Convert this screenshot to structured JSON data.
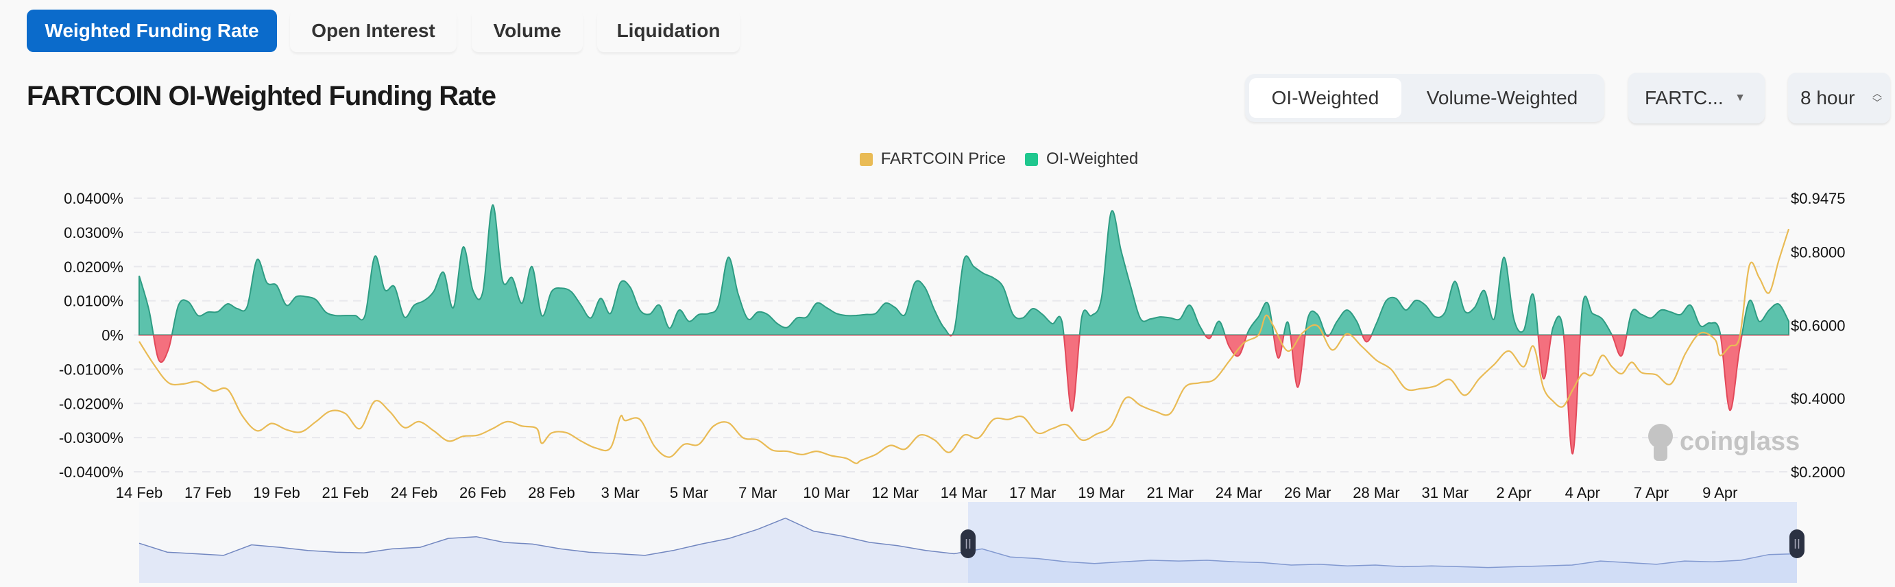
{
  "tabs": [
    {
      "label": "Weighted Funding Rate",
      "active": true
    },
    {
      "label": "Open Interest",
      "active": false
    },
    {
      "label": "Volume",
      "active": false
    },
    {
      "label": "Liquidation",
      "active": false
    }
  ],
  "title": "FARTCOIN OI-Weighted Funding Rate",
  "weighting_toggle": {
    "options": [
      "OI-Weighted",
      "Volume-Weighted"
    ],
    "selected": "OI-Weighted"
  },
  "coin_select": {
    "value": "FARTC...",
    "icon": "caret-down-icon"
  },
  "interval_select": {
    "value": "8 hour",
    "icon": "up-down-chevron-icon"
  },
  "watermark": "coinglass",
  "colors": {
    "accent": "#0b6bcb",
    "positive": "#5cc2ac",
    "positive_line": "#2e9c83",
    "negative": "#f4707e",
    "negative_line": "#e2495a",
    "price": "#e9bb55",
    "navigator_fill": "#e2e8f7",
    "navigator_line": "#7287c0"
  },
  "chart_data": {
    "type": "area",
    "legend": {
      "position": "top-center",
      "items": [
        {
          "label": "FARTCOIN Price",
          "color": "#e9bb55"
        },
        {
          "label": "OI-Weighted",
          "color": "#1fc78e"
        }
      ]
    },
    "grid": true,
    "x_ticks": [
      "14 Feb",
      "17 Feb",
      "19 Feb",
      "21 Feb",
      "24 Feb",
      "26 Feb",
      "28 Feb",
      "3 Mar",
      "5 Mar",
      "7 Mar",
      "10 Mar",
      "12 Mar",
      "14 Mar",
      "17 Mar",
      "19 Mar",
      "21 Mar",
      "24 Mar",
      "26 Mar",
      "28 Mar",
      "31 Mar",
      "2 Apr",
      "4 Apr",
      "7 Apr",
      "9 Apr"
    ],
    "y_left": {
      "ticks": [
        "0.0400%",
        "0.0300%",
        "0.0200%",
        "0.0100%",
        "0%",
        "-0.0100%",
        "-0.0200%",
        "-0.0300%",
        "-0.0400%"
      ],
      "range": [
        -0.04,
        0.04
      ],
      "unit": "%"
    },
    "y_right": {
      "ticks": [
        "$0.9475",
        "$0.8000",
        "$0.6000",
        "$0.4000",
        "$0.2000"
      ],
      "range": [
        0.2,
        0.9475
      ]
    },
    "funding_rate": {
      "name": "OI-Weighted",
      "start": "02-14 16:00",
      "interval": "8 hour",
      "values": [
        0.0173,
        0.0073,
        -0.0073,
        -0.004,
        0.0087,
        0.0097,
        0.0057,
        0.0067,
        0.0068,
        0.0091,
        0.0077,
        0.0083,
        0.022,
        0.0153,
        0.0145,
        0.0087,
        0.0112,
        0.0112,
        0.0103,
        0.0067,
        0.0057,
        0.0057,
        0.0057,
        0.0057,
        0.023,
        0.0133,
        0.0141,
        0.0053,
        0.0087,
        0.01,
        0.0127,
        0.0183,
        0.008,
        0.0257,
        0.013,
        0.0127,
        0.038,
        0.016,
        0.0167,
        0.0093,
        0.02,
        0.0057,
        0.0127,
        0.0137,
        0.0127,
        0.0087,
        0.005,
        0.0107,
        0.0063,
        0.0153,
        0.014,
        0.0073,
        0.0061,
        0.0087,
        0.002,
        0.0073,
        0.004,
        0.006,
        0.0063,
        0.0087,
        0.0227,
        0.012,
        0.0047,
        0.0067,
        0.006,
        0.0033,
        0.0022,
        0.005,
        0.0053,
        0.0093,
        0.008,
        0.0063,
        0.0057,
        0.0057,
        0.006,
        0.0063,
        0.0093,
        0.008,
        0.006,
        0.0153,
        0.014,
        0.0073,
        0.002,
        0.0013,
        0.022,
        0.02,
        0.018,
        0.0167,
        0.014,
        0.006,
        0.005,
        0.0077,
        0.006,
        0.0033,
        0.0037,
        -0.0223,
        0.0053,
        0.0057,
        0.0107,
        0.036,
        0.0247,
        0.014,
        0.0047,
        0.0047,
        0.0053,
        0.005,
        0.0047,
        0.0087,
        0.0027,
        -0.001,
        0.004,
        -0.0033,
        -0.006,
        0.0013,
        0.0053,
        0.009,
        -0.0067,
        0.0037,
        -0.0153,
        0.0047,
        0.006,
        -0.0003,
        0.004,
        0.0073,
        0.004,
        -0.002,
        0.0033,
        0.01,
        0.0107,
        0.0073,
        0.0101,
        0.0087,
        0.0053,
        0.0067,
        0.0157,
        0.007,
        0.008,
        0.013,
        0.0047,
        0.0227,
        0.0047,
        0.0013,
        0.0117,
        -0.0127,
        0.0023,
        0.002,
        -0.0347,
        0.0087,
        0.0063,
        0.0047,
        0,
        -0.006,
        0.0067,
        0.006,
        0.005,
        0.0073,
        0.0067,
        0.006,
        0.0087,
        0.0027,
        0.0035,
        0.0007,
        -0.022,
        -0.004,
        0.01,
        0.004,
        0.0073,
        0.009,
        0.004
      ]
    },
    "price": {
      "name": "FARTCOIN Price",
      "points": [
        [
          "02-14 16:00",
          0.556
        ],
        [
          "02-15 04:00",
          0.493
        ],
        [
          "02-15 16:00",
          0.443
        ],
        [
          "02-16 04:00",
          0.44
        ],
        [
          "02-16 16:00",
          0.446
        ],
        [
          "02-17 04:00",
          0.421
        ],
        [
          "02-17 16:00",
          0.425
        ],
        [
          "02-18 04:00",
          0.353
        ],
        [
          "02-18 16:00",
          0.312
        ],
        [
          "02-19 04:00",
          0.332
        ],
        [
          "02-19 16:00",
          0.315
        ],
        [
          "02-20 04:00",
          0.309
        ],
        [
          "02-20 16:00",
          0.337
        ],
        [
          "02-21 04:00",
          0.366
        ],
        [
          "02-21 16:00",
          0.359
        ],
        [
          "02-22 04:00",
          0.318
        ],
        [
          "02-22 16:00",
          0.393
        ],
        [
          "02-23 04:00",
          0.365
        ],
        [
          "02-23 16:00",
          0.321
        ],
        [
          "02-24 04:00",
          0.337
        ],
        [
          "02-24 16:00",
          0.312
        ],
        [
          "02-25 04:00",
          0.284
        ],
        [
          "02-25 16:00",
          0.297
        ],
        [
          "02-26 04:00",
          0.3
        ],
        [
          "02-26 16:00",
          0.318
        ],
        [
          "02-27 04:00",
          0.337
        ],
        [
          "02-27 16:00",
          0.325
        ],
        [
          "02-28 04:00",
          0.318
        ],
        [
          "02-28 08:00",
          0.278
        ],
        [
          "02-28 16:00",
          0.306
        ],
        [
          "03-01 04:00",
          0.307
        ],
        [
          "03-01 16:00",
          0.284
        ],
        [
          "03-02 04:00",
          0.265
        ],
        [
          "03-02 16:00",
          0.265
        ],
        [
          "03-03 00:00",
          0.35
        ],
        [
          "03-03 04:00",
          0.34
        ],
        [
          "03-03 16:00",
          0.343
        ],
        [
          "03-04 04:00",
          0.269
        ],
        [
          "03-04 16:00",
          0.24
        ],
        [
          "03-05 04:00",
          0.275
        ],
        [
          "03-05 16:00",
          0.275
        ],
        [
          "03-06 04:00",
          0.325
        ],
        [
          "03-06 16:00",
          0.334
        ],
        [
          "03-07 04:00",
          0.293
        ],
        [
          "03-07 16:00",
          0.287
        ],
        [
          "03-08 04:00",
          0.259
        ],
        [
          "03-08 16:00",
          0.256
        ],
        [
          "03-09 04:00",
          0.247
        ],
        [
          "03-09 16:00",
          0.256
        ],
        [
          "03-10 04:00",
          0.244
        ],
        [
          "03-10 16:00",
          0.237
        ],
        [
          "03-11 00:00",
          0.223
        ],
        [
          "03-11 04:00",
          0.231
        ],
        [
          "03-11 16:00",
          0.247
        ],
        [
          "03-12 04:00",
          0.272
        ],
        [
          "03-12 16:00",
          0.262
        ],
        [
          "03-13 04:00",
          0.3
        ],
        [
          "03-13 16:00",
          0.287
        ],
        [
          "03-14 04:00",
          0.253
        ],
        [
          "03-14 16:00",
          0.3
        ],
        [
          "03-15 04:00",
          0.293
        ],
        [
          "03-15 16:00",
          0.343
        ],
        [
          "03-16 04:00",
          0.343
        ],
        [
          "03-16 16:00",
          0.35
        ],
        [
          "03-17 04:00",
          0.306
        ],
        [
          "03-17 16:00",
          0.318
        ],
        [
          "03-18 04:00",
          0.328
        ],
        [
          "03-18 16:00",
          0.287
        ],
        [
          "03-19 04:00",
          0.303
        ],
        [
          "03-19 16:00",
          0.325
        ],
        [
          "03-20 04:00",
          0.402
        ],
        [
          "03-20 16:00",
          0.381
        ],
        [
          "03-21 04:00",
          0.365
        ],
        [
          "03-21 16:00",
          0.359
        ],
        [
          "03-22 04:00",
          0.431
        ],
        [
          "03-22 16:00",
          0.443
        ],
        [
          "03-23 04:00",
          0.452
        ],
        [
          "03-23 16:00",
          0.502
        ],
        [
          "03-24 04:00",
          0.552
        ],
        [
          "03-24 16:00",
          0.574
        ],
        [
          "03-24 22:00",
          0.627
        ],
        [
          "03-25 04:00",
          0.599
        ],
        [
          "03-25 16:00",
          0.53
        ],
        [
          "03-26 04:00",
          0.58
        ],
        [
          "03-26 16:00",
          0.599
        ],
        [
          "03-27 04:00",
          0.533
        ],
        [
          "03-27 16:00",
          0.577
        ],
        [
          "03-28 04:00",
          0.543
        ],
        [
          "03-28 16:00",
          0.505
        ],
        [
          "03-29 04:00",
          0.48
        ],
        [
          "03-29 16:00",
          0.427
        ],
        [
          "03-30 04:00",
          0.427
        ],
        [
          "03-30 16:00",
          0.434
        ],
        [
          "03-31 04:00",
          0.452
        ],
        [
          "03-31 16:00",
          0.409
        ],
        [
          "04-01 04:00",
          0.455
        ],
        [
          "04-01 16:00",
          0.493
        ],
        [
          "04-02 04:00",
          0.53
        ],
        [
          "04-02 16:00",
          0.487
        ],
        [
          "04-03 00:00",
          0.543
        ],
        [
          "04-03 08:00",
          0.431
        ],
        [
          "04-03 16:00",
          0.393
        ],
        [
          "04-04 00:00",
          0.378
        ],
        [
          "04-04 08:00",
          0.424
        ],
        [
          "04-04 16:00",
          0.468
        ],
        [
          "04-05 00:00",
          0.465
        ],
        [
          "04-05 08:00",
          0.518
        ],
        [
          "04-05 16:00",
          0.487
        ],
        [
          "04-06 00:00",
          0.468
        ],
        [
          "04-06 08:00",
          0.499
        ],
        [
          "04-06 16:00",
          0.471
        ],
        [
          "04-07 04:00",
          0.465
        ],
        [
          "04-07 16:00",
          0.44
        ],
        [
          "04-08 04:00",
          0.524
        ],
        [
          "04-08 16:00",
          0.579
        ],
        [
          "04-09 04:00",
          0.561
        ],
        [
          "04-09 08:00",
          0.518
        ],
        [
          "04-09 16:00",
          0.543
        ],
        [
          "04-10 00:00",
          0.568
        ],
        [
          "04-10 08:00",
          0.764
        ],
        [
          "04-10 16:00",
          0.73
        ],
        [
          "04-11 00:00",
          0.689
        ],
        [
          "04-11 08:00",
          0.779
        ],
        [
          "04-11 16:00",
          0.863
        ]
      ]
    },
    "navigator": {
      "relative_levels": [
        0.49,
        0.38,
        0.36,
        0.34,
        0.47,
        0.44,
        0.4,
        0.38,
        0.37,
        0.42,
        0.44,
        0.55,
        0.57,
        0.5,
        0.48,
        0.42,
        0.38,
        0.36,
        0.34,
        0.4,
        0.48,
        0.55,
        0.66,
        0.8,
        0.64,
        0.58,
        0.5,
        0.46,
        0.4,
        0.36,
        0.42,
        0.32,
        0.3,
        0.26,
        0.24,
        0.26,
        0.28,
        0.27,
        0.28,
        0.26,
        0.25,
        0.22,
        0.23,
        0.21,
        0.22,
        0.2,
        0.21,
        0.2,
        0.19,
        0.2,
        0.21,
        0.22,
        0.27,
        0.25,
        0.23,
        0.27,
        0.26,
        0.28,
        0.35,
        0.36
      ],
      "selected_range_fraction": [
        0.5,
        1.0
      ]
    }
  }
}
